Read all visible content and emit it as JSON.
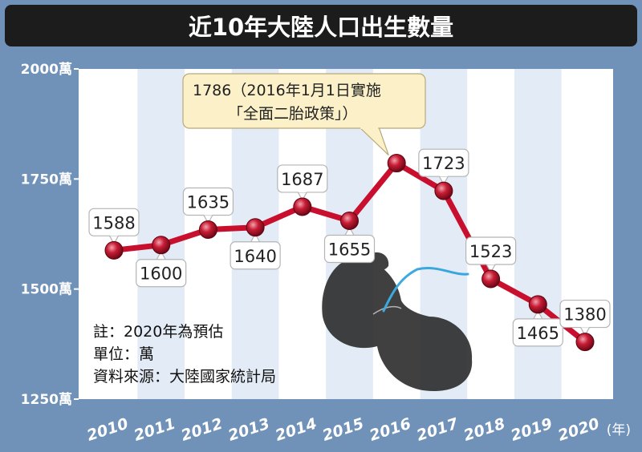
{
  "chart_data": {
    "type": "line",
    "title": "近10年大陸人口出生數量",
    "x_unit": "(年)",
    "x": [
      "2010",
      "2011",
      "2012",
      "2013",
      "2014",
      "2015",
      "2016",
      "2017",
      "2018",
      "2019",
      "2020"
    ],
    "y_ticks": [
      "2000萬",
      "1750萬",
      "1500萬",
      "1250萬"
    ],
    "ylim": [
      1250,
      2000
    ],
    "grid": false,
    "series": [
      {
        "values": [
          1588,
          1600,
          1635,
          1640,
          1687,
          1655,
          1786,
          1723,
          1523,
          1465,
          1380
        ],
        "labels": [
          "1588",
          "1600",
          "1635",
          "1640",
          "1687",
          "1655",
          "1786",
          "1723",
          "1523",
          "1465",
          "1380"
        ],
        "color": "#c8102e"
      }
    ],
    "annotation": {
      "lines": [
        "1786（2016年1月1日實施",
        "「全面二胎政策」）"
      ],
      "x": "2016"
    },
    "notes": [
      "註：2020年為預估",
      "單位：萬",
      "資料來源：大陸國家統計局"
    ],
    "colors": {
      "frame": "#7091b8",
      "title_bg": "#1c1c1c",
      "title_text": "#ffffff",
      "stripe": "#e3ecf6",
      "line": "#c8102e",
      "marker": "#a8112a",
      "label_bg": "#ffffff",
      "label_border": "#b4b4b4",
      "callout_bg": "#fbf0c8",
      "callout_border": "#b8a87a"
    }
  }
}
